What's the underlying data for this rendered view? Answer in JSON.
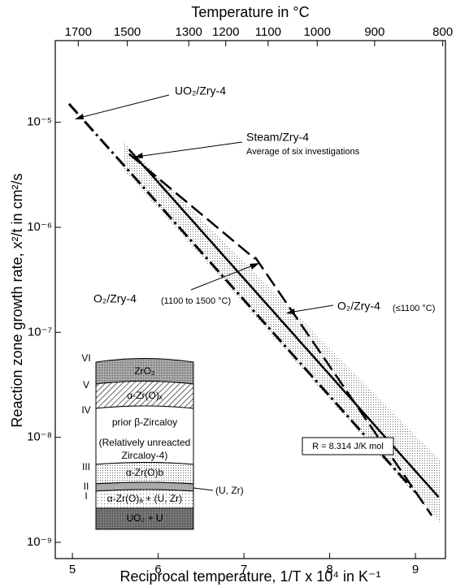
{
  "chart_data": {
    "type": "line",
    "title": "Temperature in °C",
    "x_label": "Reciprocal temperature, 1/T x 10⁴ in K⁻¹",
    "y_label": "Reaction zone growth rate, x²/t in cm²/s",
    "xlim": [
      4.8,
      9.35
    ],
    "xticks": [
      5,
      6,
      7,
      8,
      9
    ],
    "ylim": [
      7e-10,
      6e-05
    ],
    "ylog": true,
    "yticks": [
      {
        "value": 1e-05,
        "label": "10⁻⁵"
      },
      {
        "value": 1e-06,
        "label": "10⁻⁶"
      },
      {
        "value": 1e-07,
        "label": "10⁻⁷"
      },
      {
        "value": 1e-08,
        "label": "10⁻⁸"
      },
      {
        "value": 1e-09,
        "label": "10⁻⁹"
      }
    ],
    "top_ticks": [
      1700,
      1500,
      1300,
      1200,
      1100,
      1000,
      900,
      800
    ],
    "series": [
      {
        "name": "UO₂/Zry-4",
        "color": "#000000",
        "style": "dash-dot",
        "x": [
          4.96,
          9.0
        ],
        "values": [
          1.5e-05,
          3e-09
        ]
      },
      {
        "name": "Steam/Zry-4",
        "color": "#000000",
        "style": "solid",
        "x": [
          5.66,
          9.27
        ],
        "values": [
          5.5e-06,
          2.7e-09
        ]
      },
      {
        "name": "O₂/Zry-4",
        "color": "#000000",
        "style": "dash",
        "x": [
          5.66,
          7.13
        ],
        "values": [
          5e-06,
          5e-07
        ]
      },
      {
        "name": "O₂/Zry-4",
        "color": "#000000",
        "style": "dash",
        "x": [
          7.13,
          9.19
        ],
        "values": [
          5.2e-07,
          1.8e-09
        ]
      }
    ],
    "band": {
      "x": [
        5.6,
        9.3
      ],
      "upper": [
        6.5e-06,
        6e-09
      ],
      "lower": [
        3.5e-06,
        1.5e-09
      ],
      "color": "#9a9a9a"
    },
    "annotations": [
      "Average of six investigations",
      "(1100 to 1500 °C)",
      "(≤1100 °C)",
      "R = 8.314 J/K mol"
    ]
  },
  "inset": {
    "layers": [
      "ZrO₂",
      "α-Zr(O)ₓ",
      "prior β-Zircaloy",
      "(Relatively unreacted",
      "Zircaloy-4)",
      "α-Zr(O)b",
      "α-Zr(O)ₐ + (U, Zr)",
      "UO₂ + U"
    ],
    "boundaries": [
      "VI",
      "V",
      "IV",
      "III",
      "II",
      "I"
    ],
    "interlayer": "(U, Zr)"
  }
}
